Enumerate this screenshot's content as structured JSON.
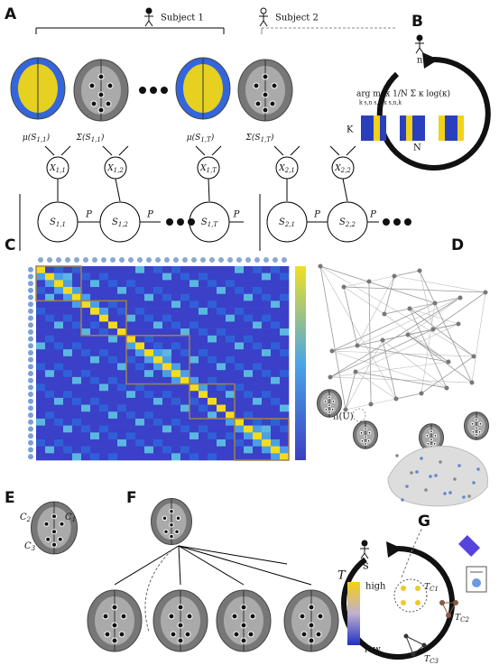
{
  "panels": {
    "a": "A",
    "b": "B",
    "c": "C",
    "d": "D",
    "e": "E",
    "f": "F",
    "g": "G"
  },
  "panel_a": {
    "subjects": [
      "Subject 1",
      "Subject 2"
    ],
    "emissions": [
      {
        "base": "μ(S",
        "sub": "1,1",
        "end": ")"
      },
      {
        "base": "Σ(S",
        "sub": "1,1",
        "end": ")"
      },
      {
        "base": "μ(S",
        "sub": "1,T",
        "end": ")"
      },
      {
        "base": "Σ(S",
        "sub": "1,T",
        "end": ")"
      }
    ],
    "observations": [
      {
        "base": "X",
        "sub": "1,1"
      },
      {
        "base": "X",
        "sub": "1,2"
      },
      {
        "base": "X",
        "sub": "1,T"
      },
      {
        "base": "X",
        "sub": "2,1"
      },
      {
        "base": "X",
        "sub": "2,2"
      }
    ],
    "states": [
      {
        "base": "S",
        "sub": "1,1"
      },
      {
        "base": "S",
        "sub": "1,2"
      },
      {
        "base": "S",
        "sub": "1,T"
      },
      {
        "base": "S",
        "sub": "2,1"
      },
      {
        "base": "S",
        "sub": "2,2"
      }
    ],
    "transition": "P"
  },
  "panel_b": {
    "formula": "arg max 1/N Σ κ log(κ)",
    "formula_sub": "k      s,n   s,n,k       s,n,k",
    "k": "K",
    "n_axis": "N",
    "subject": "n"
  },
  "panel_d": {
    "hub": "h(U)"
  },
  "panel_e": {
    "clusters": [
      {
        "base": "C",
        "sub": "2"
      },
      {
        "base": "C",
        "sub": "1"
      },
      {
        "base": "C",
        "sub": "3"
      }
    ]
  },
  "panel_g": {
    "node": "s",
    "axis": "T",
    "high": "high",
    "low": "low",
    "trees": [
      {
        "base": "T",
        "sub": "C1"
      },
      {
        "base": "T",
        "sub": "C2"
      },
      {
        "base": "T",
        "sub": "C3"
      }
    ]
  }
}
